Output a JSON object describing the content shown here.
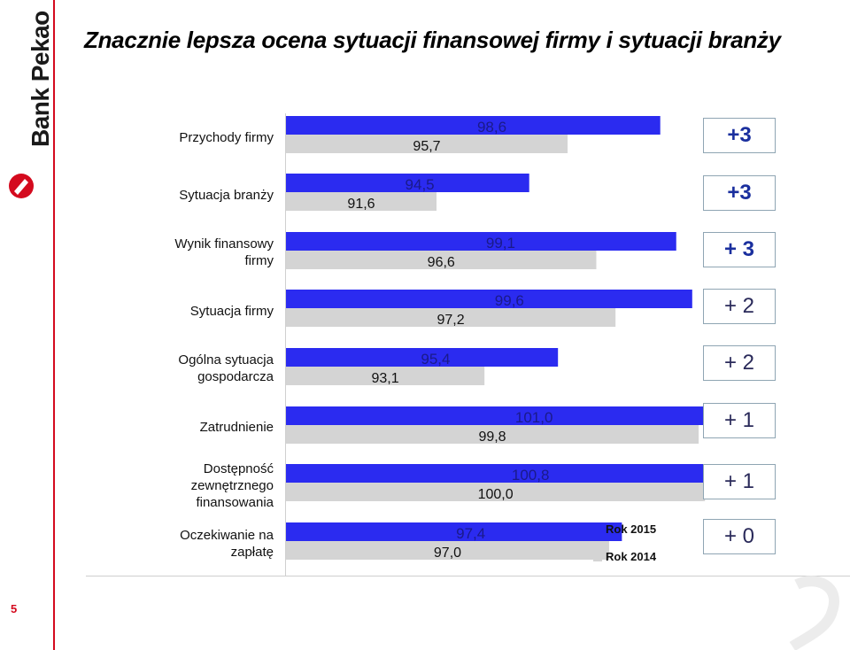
{
  "brand": {
    "name": "Bank Pekao",
    "accent": "#d40a1e"
  },
  "page_number": "5",
  "chart_data": {
    "type": "bar",
    "title": "Znacznie lepsza ocena sytuacji finansowej firmy i sytuacji branży",
    "orientation": "horizontal",
    "categories": [
      "Przychody firmy",
      "Sytuacja branży",
      "Wynik finansowy firmy",
      "Sytuacja firmy",
      "Ogólna sytuacja gospodarcza",
      "Zatrudnienie",
      "Dostępność zewnętrznego finansowania",
      "Oczekiwanie na zapłatę"
    ],
    "series": [
      {
        "name": "Rok 2015",
        "color": "#2b2bf0",
        "values": [
          98.6,
          94.5,
          99.1,
          99.6,
          95.4,
          101.0,
          100.8,
          97.4
        ],
        "labels": [
          "98,6",
          "94,5",
          "99,1",
          "99,6",
          "95,4",
          "101,0",
          "100,8",
          "97,4"
        ]
      },
      {
        "name": "Rok 2014",
        "color": "#d4d4d4",
        "values": [
          95.7,
          91.6,
          96.6,
          97.2,
          93.1,
          99.8,
          100.0,
          97.0
        ],
        "labels": [
          "95,7",
          "91,6",
          "96,6",
          "97,2",
          "93,1",
          "99,8",
          "100,0",
          "97,0"
        ]
      }
    ],
    "differences": [
      "+3",
      "+3",
      "+ 3",
      "+ 2",
      "+ 2",
      "+ 1",
      "+ 1",
      "+ 0"
    ],
    "legend_position": "bottom-right",
    "grid": false
  }
}
